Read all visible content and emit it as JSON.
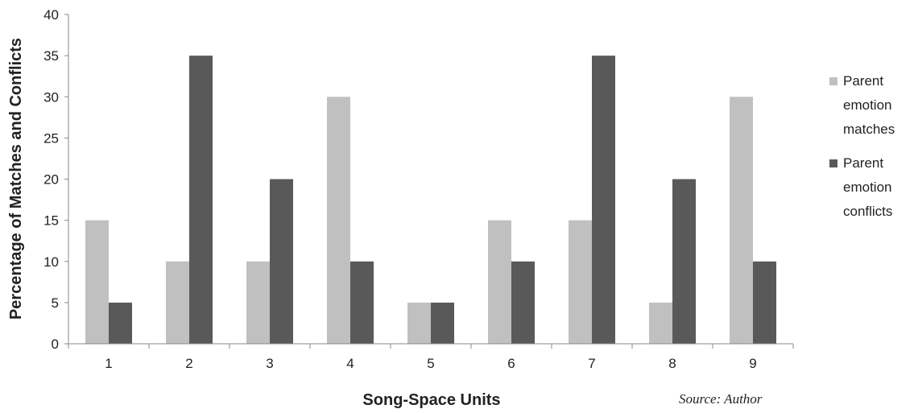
{
  "chart_data": {
    "type": "bar",
    "categories": [
      "1",
      "2",
      "3",
      "4",
      "5",
      "6",
      "7",
      "8",
      "9"
    ],
    "series": [
      {
        "name": "Parent emotion matches",
        "legend_lines": [
          "Parent",
          "emotion",
          "matches"
        ],
        "color": "#c0c0c0",
        "values": [
          15,
          10,
          10,
          30,
          5,
          15,
          15,
          5,
          30
        ]
      },
      {
        "name": "Parent emotion conflicts",
        "legend_lines": [
          "Parent",
          "emotion",
          "conflicts"
        ],
        "color": "#595959",
        "values": [
          5,
          35,
          20,
          10,
          5,
          10,
          35,
          20,
          10
        ]
      }
    ],
    "xlabel": "Song-Space Units",
    "ylabel": "Percentage of Matches and Conflicts",
    "ylim": [
      0,
      40
    ],
    "yticks": [
      0,
      5,
      10,
      15,
      20,
      25,
      30,
      35,
      40
    ],
    "grid": false,
    "legend_position": "right",
    "source": "Source: Author"
  }
}
